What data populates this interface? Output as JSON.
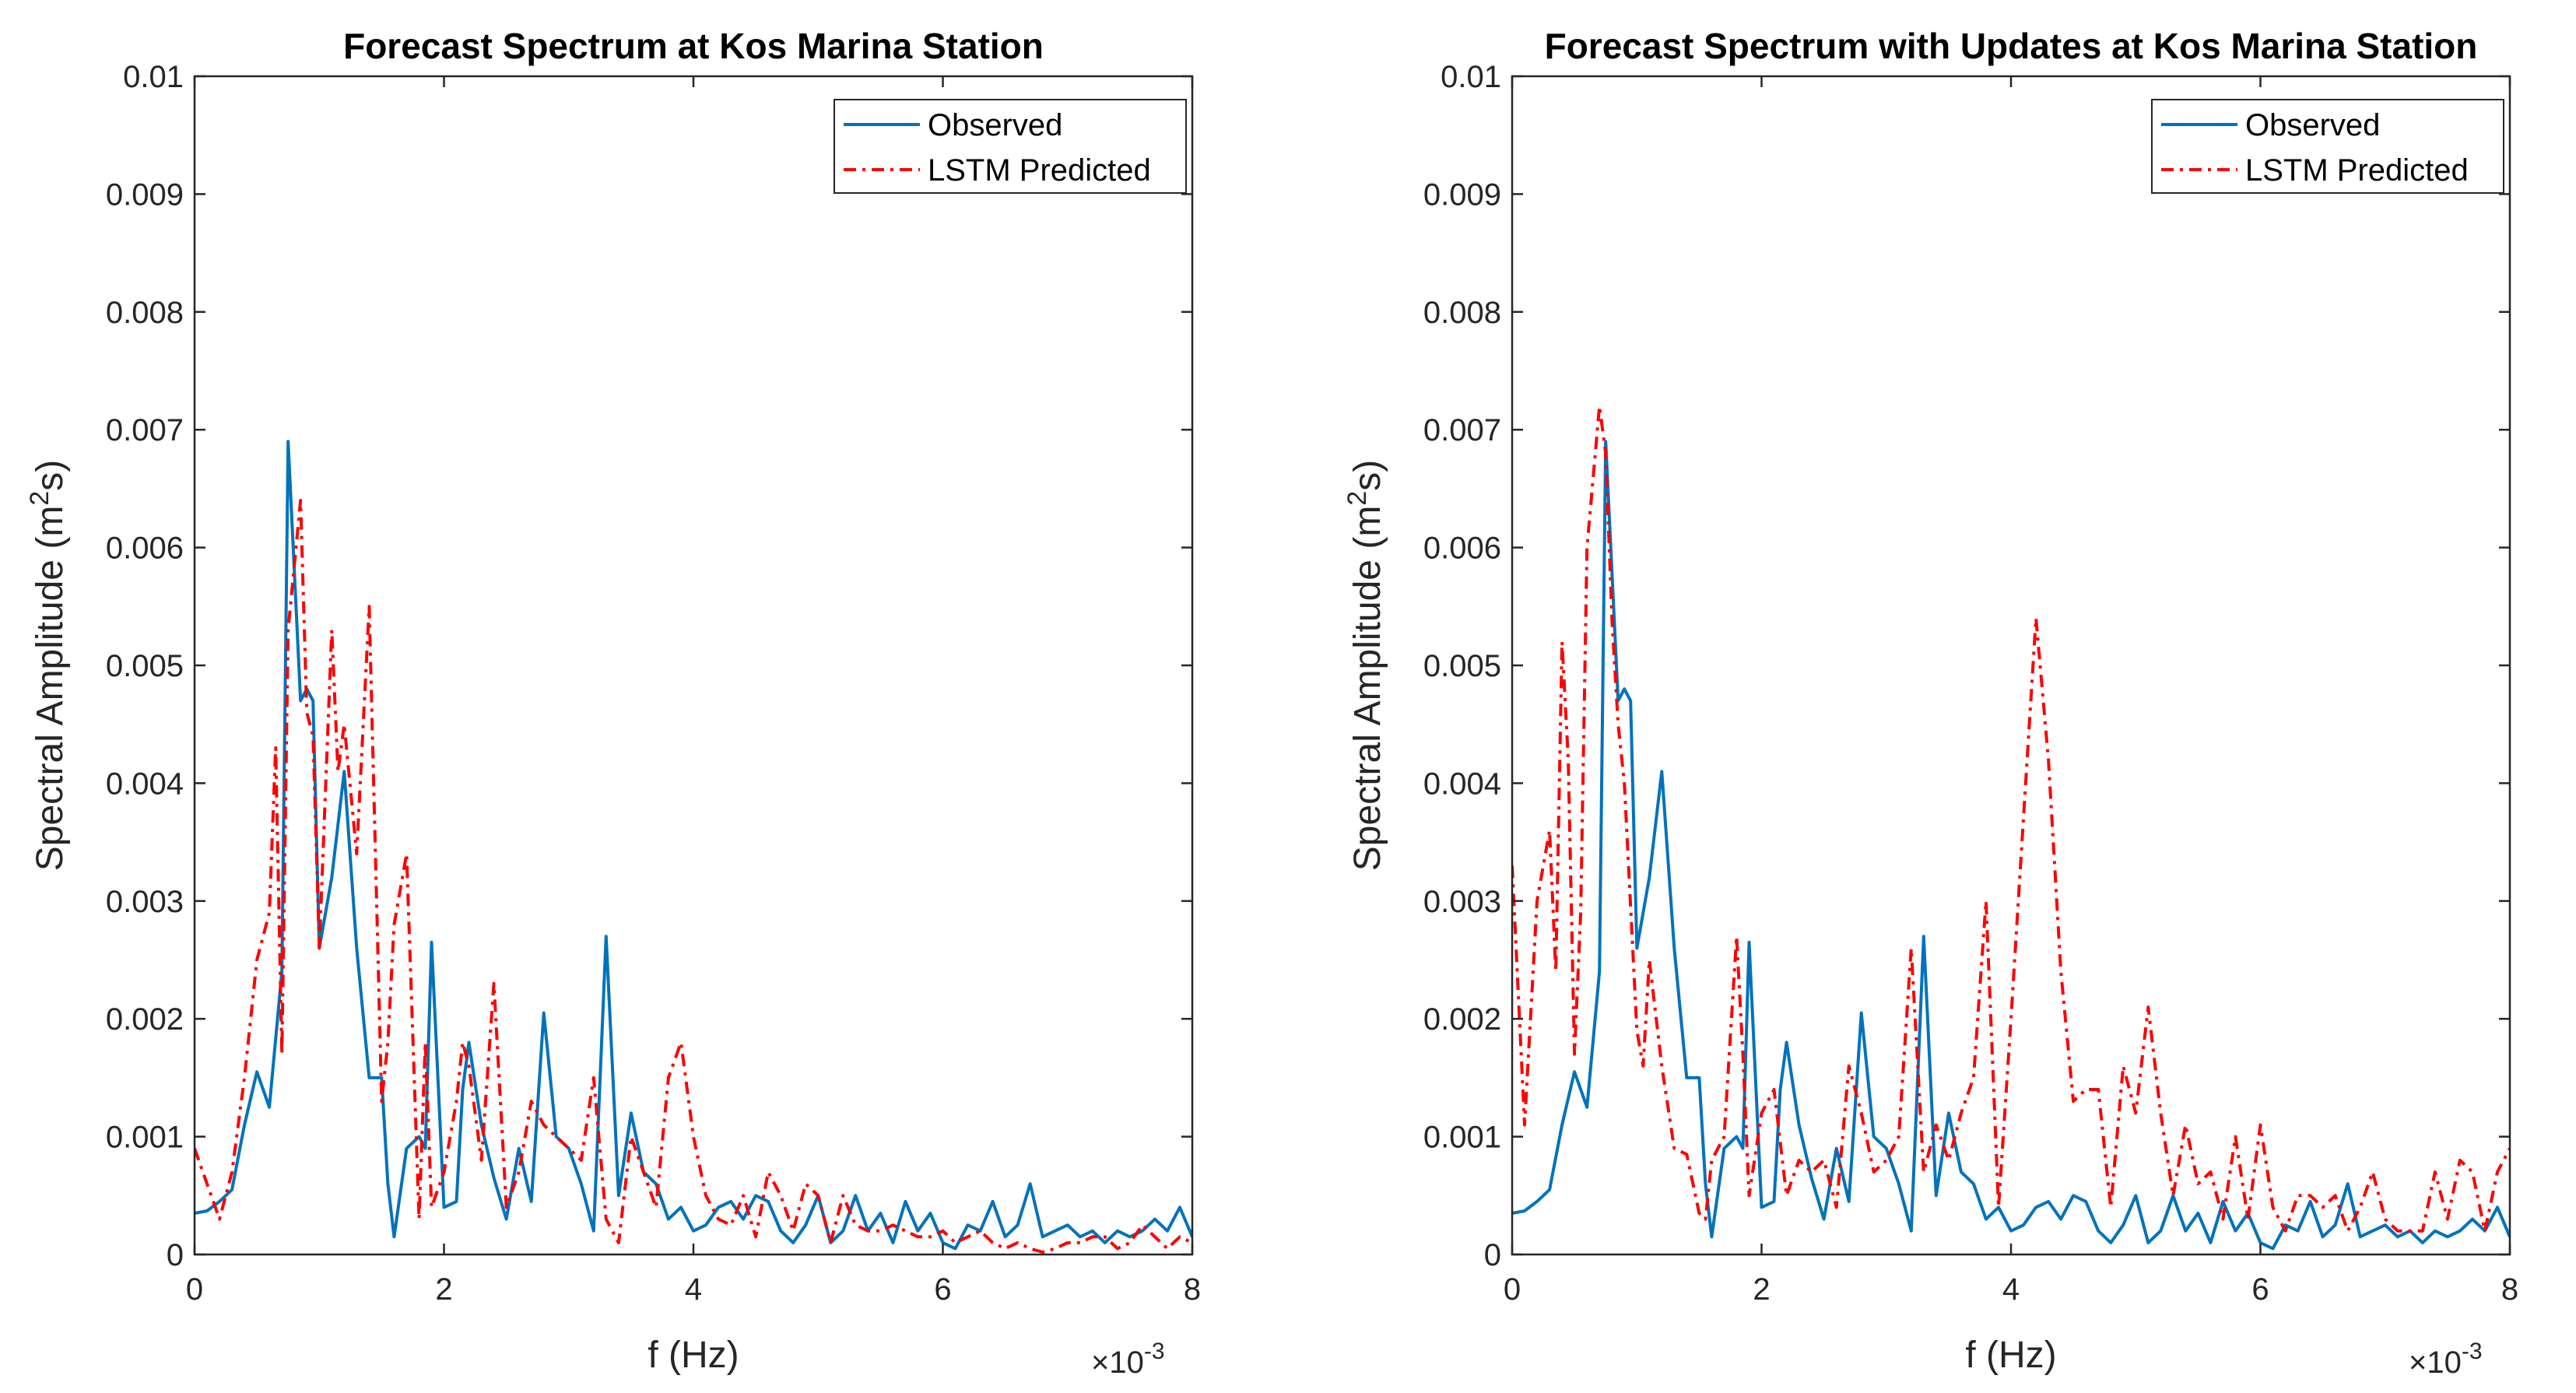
{
  "chart_data": [
    {
      "type": "line",
      "title": "Forecast Spectrum at Kos Marina Station",
      "xlabel": "f (Hz)",
      "ylabel_main": "Spectral Amplitude (m",
      "ylabel_sup": "2",
      "ylabel_tail": "s)",
      "x_multiplier": "×10",
      "x_multiplier_exp": "-3",
      "xlim": [
        0,
        8
      ],
      "ylim": [
        0,
        0.01
      ],
      "xticks": [
        0,
        2,
        4,
        6,
        8
      ],
      "xtick_labels": [
        "0",
        "2",
        "4",
        "6",
        "8"
      ],
      "yticks": [
        0,
        0.001,
        0.002,
        0.003,
        0.004,
        0.005,
        0.006,
        0.007,
        0.008,
        0.009,
        0.01
      ],
      "ytick_labels": [
        "0",
        "0.001",
        "0.002",
        "0.003",
        "0.004",
        "0.005",
        "0.006",
        "0.007",
        "0.008",
        "0.009",
        "0.01"
      ],
      "legend": {
        "position": "top-right",
        "entries": [
          "Observed",
          "LSTM Predicted"
        ]
      },
      "series": [
        {
          "name": "Observed",
          "color": "#0072BD",
          "style": "solid",
          "x": [
            0,
            0.1,
            0.2,
            0.3,
            0.4,
            0.5,
            0.6,
            0.7,
            0.75,
            0.85,
            0.9,
            0.95,
            1.0,
            1.1,
            1.2,
            1.3,
            1.4,
            1.5,
            1.55,
            1.6,
            1.7,
            1.8,
            1.85,
            1.9,
            2.0,
            2.1,
            2.15,
            2.2,
            2.3,
            2.4,
            2.5,
            2.6,
            2.7,
            2.8,
            2.9,
            3.0,
            3.1,
            3.2,
            3.3,
            3.4,
            3.5,
            3.6,
            3.7,
            3.8,
            3.9,
            4.0,
            4.1,
            4.2,
            4.3,
            4.4,
            4.5,
            4.6,
            4.7,
            4.8,
            4.9,
            5.0,
            5.1,
            5.2,
            5.3,
            5.4,
            5.5,
            5.6,
            5.7,
            5.8,
            5.9,
            6.0,
            6.1,
            6.2,
            6.3,
            6.4,
            6.5,
            6.6,
            6.7,
            6.8,
            6.9,
            7.0,
            7.1,
            7.2,
            7.3,
            7.4,
            7.5,
            7.6,
            7.7,
            7.8,
            7.9,
            8.0
          ],
          "y": [
            0.00035,
            0.00037,
            0.00045,
            0.00055,
            0.0011,
            0.00155,
            0.00125,
            0.0024,
            0.0069,
            0.0047,
            0.0048,
            0.0047,
            0.0026,
            0.0032,
            0.0041,
            0.0026,
            0.0015,
            0.0015,
            0.0006,
            0.00015,
            0.0009,
            0.001,
            0.0009,
            0.00265,
            0.0004,
            0.00045,
            0.0014,
            0.0018,
            0.0011,
            0.00065,
            0.0003,
            0.0009,
            0.00045,
            0.00205,
            0.001,
            0.0009,
            0.0006,
            0.0002,
            0.0027,
            0.0005,
            0.0012,
            0.0007,
            0.0006,
            0.0003,
            0.0004,
            0.0002,
            0.00025,
            0.0004,
            0.00045,
            0.0003,
            0.0005,
            0.00045,
            0.0002,
            0.0001,
            0.00025,
            0.0005,
            0.0001,
            0.0002,
            0.0005,
            0.0002,
            0.00035,
            0.0001,
            0.00045,
            0.0002,
            0.00035,
            0.0001,
            5e-05,
            0.00025,
            0.0002,
            0.00045,
            0.00015,
            0.00025,
            0.0006,
            0.00015,
            0.0002,
            0.00025,
            0.00015,
            0.0002,
            0.0001,
            0.0002,
            0.00015,
            0.0002,
            0.0003,
            0.0002,
            0.0004,
            0.00015
          ]
        },
        {
          "name": "LSTM Predicted",
          "color": "#FF0000",
          "style": "dashdot",
          "x": [
            0,
            0.1,
            0.2,
            0.3,
            0.4,
            0.5,
            0.6,
            0.65,
            0.7,
            0.75,
            0.85,
            0.9,
            0.95,
            1.0,
            1.1,
            1.15,
            1.2,
            1.3,
            1.4,
            1.5,
            1.55,
            1.6,
            1.7,
            1.8,
            1.85,
            1.9,
            2.0,
            2.1,
            2.15,
            2.2,
            2.3,
            2.4,
            2.5,
            2.6,
            2.7,
            2.8,
            2.9,
            3.0,
            3.1,
            3.2,
            3.3,
            3.4,
            3.5,
            3.6,
            3.7,
            3.8,
            3.9,
            4.0,
            4.1,
            4.2,
            4.3,
            4.4,
            4.5,
            4.6,
            4.7,
            4.8,
            4.9,
            5.0,
            5.1,
            5.2,
            5.3,
            5.4,
            5.5,
            5.6,
            5.7,
            5.8,
            5.9,
            6.0,
            6.1,
            6.2,
            6.3,
            6.4,
            6.5,
            6.6,
            6.7,
            6.8,
            6.9,
            7.0,
            7.1,
            7.2,
            7.3,
            7.4,
            7.5,
            7.6,
            7.7,
            7.8,
            7.9,
            8.0
          ],
          "y": [
            0.0009,
            0.0006,
            0.0003,
            0.0007,
            0.0015,
            0.0025,
            0.0029,
            0.0043,
            0.0017,
            0.0053,
            0.0064,
            0.0046,
            0.0044,
            0.0026,
            0.0053,
            0.0041,
            0.0045,
            0.0034,
            0.0055,
            0.0013,
            0.0018,
            0.0028,
            0.0034,
            0.0003,
            0.0018,
            0.0004,
            0.0007,
            0.0013,
            0.0018,
            0.0016,
            0.0008,
            0.0023,
            0.0004,
            0.0007,
            0.0013,
            0.0011,
            0.001,
            0.0009,
            0.0008,
            0.0015,
            0.0003,
            0.0001,
            0.001,
            0.0007,
            0.0004,
            0.0015,
            0.0018,
            0.001,
            0.0005,
            0.0003,
            0.00025,
            0.0005,
            0.00015,
            0.0007,
            0.0005,
            0.0002,
            0.0006,
            0.0005,
            0.0001,
            0.0005,
            0.00025,
            0.0002,
            0.0002,
            0.00025,
            0.0002,
            0.00015,
            0.00015,
            0.0002,
            0.0001,
            0.00015,
            0.0002,
            0.0001,
            5e-05,
            0.0001,
            5e-05,
            2e-05,
            5e-05,
            0.0001,
            0.0001,
            0.00015,
            0.00015,
            5e-05,
            0.0001,
            0.00025,
            0.00015,
            5e-05,
            0.00015,
            0.0001
          ]
        }
      ]
    },
    {
      "type": "line",
      "title": "Forecast Spectrum with Updates at Kos Marina Station",
      "xlabel": "f (Hz)",
      "ylabel_main": "Spectral Amplitude (m",
      "ylabel_sup": "2",
      "ylabel_tail": "s)",
      "x_multiplier": "×10",
      "x_multiplier_exp": "-3",
      "xlim": [
        0,
        8
      ],
      "ylim": [
        0,
        0.01
      ],
      "xticks": [
        0,
        2,
        4,
        6,
        8
      ],
      "xtick_labels": [
        "0",
        "2",
        "4",
        "6",
        "8"
      ],
      "yticks": [
        0,
        0.001,
        0.002,
        0.003,
        0.004,
        0.005,
        0.006,
        0.007,
        0.008,
        0.009,
        0.01
      ],
      "ytick_labels": [
        "0",
        "0.001",
        "0.002",
        "0.003",
        "0.004",
        "0.005",
        "0.006",
        "0.007",
        "0.008",
        "0.009",
        "0.01"
      ],
      "legend": {
        "position": "top-right",
        "entries": [
          "Observed",
          "LSTM Predicted"
        ]
      },
      "series": [
        {
          "name": "Observed",
          "color": "#0072BD",
          "style": "solid",
          "x": [
            0,
            0.1,
            0.2,
            0.3,
            0.4,
            0.5,
            0.6,
            0.7,
            0.75,
            0.85,
            0.9,
            0.95,
            1.0,
            1.1,
            1.2,
            1.3,
            1.4,
            1.5,
            1.55,
            1.6,
            1.7,
            1.8,
            1.85,
            1.9,
            2.0,
            2.1,
            2.15,
            2.2,
            2.3,
            2.4,
            2.5,
            2.6,
            2.7,
            2.8,
            2.9,
            3.0,
            3.1,
            3.2,
            3.3,
            3.4,
            3.5,
            3.6,
            3.7,
            3.8,
            3.9,
            4.0,
            4.1,
            4.2,
            4.3,
            4.4,
            4.5,
            4.6,
            4.7,
            4.8,
            4.9,
            5.0,
            5.1,
            5.2,
            5.3,
            5.4,
            5.5,
            5.6,
            5.7,
            5.8,
            5.9,
            6.0,
            6.1,
            6.2,
            6.3,
            6.4,
            6.5,
            6.6,
            6.7,
            6.8,
            6.9,
            7.0,
            7.1,
            7.2,
            7.3,
            7.4,
            7.5,
            7.6,
            7.7,
            7.8,
            7.9,
            8.0
          ],
          "y": [
            0.00035,
            0.00037,
            0.00045,
            0.00055,
            0.0011,
            0.00155,
            0.00125,
            0.0024,
            0.0069,
            0.0047,
            0.0048,
            0.0047,
            0.0026,
            0.0032,
            0.0041,
            0.0026,
            0.0015,
            0.0015,
            0.0006,
            0.00015,
            0.0009,
            0.001,
            0.0009,
            0.00265,
            0.0004,
            0.00045,
            0.0014,
            0.0018,
            0.0011,
            0.00065,
            0.0003,
            0.0009,
            0.00045,
            0.00205,
            0.001,
            0.0009,
            0.0006,
            0.0002,
            0.0027,
            0.0005,
            0.0012,
            0.0007,
            0.0006,
            0.0003,
            0.0004,
            0.0002,
            0.00025,
            0.0004,
            0.00045,
            0.0003,
            0.0005,
            0.00045,
            0.0002,
            0.0001,
            0.00025,
            0.0005,
            0.0001,
            0.0002,
            0.0005,
            0.0002,
            0.00035,
            0.0001,
            0.00045,
            0.0002,
            0.00035,
            0.0001,
            5e-05,
            0.00025,
            0.0002,
            0.00045,
            0.00015,
            0.00025,
            0.0006,
            0.00015,
            0.0002,
            0.00025,
            0.00015,
            0.0002,
            0.0001,
            0.0002,
            0.00015,
            0.0002,
            0.0003,
            0.0002,
            0.0004,
            0.00015
          ]
        },
        {
          "name": "LSTM Predicted",
          "color": "#FF0000",
          "style": "dashdot",
          "x": [
            0,
            0.1,
            0.2,
            0.3,
            0.35,
            0.4,
            0.45,
            0.5,
            0.55,
            0.6,
            0.7,
            0.75,
            0.8,
            0.85,
            0.9,
            1.0,
            1.05,
            1.1,
            1.2,
            1.3,
            1.4,
            1.5,
            1.55,
            1.6,
            1.7,
            1.8,
            1.85,
            1.9,
            2.0,
            2.1,
            2.2,
            2.3,
            2.4,
            2.5,
            2.6,
            2.7,
            2.8,
            2.9,
            3.0,
            3.1,
            3.2,
            3.3,
            3.4,
            3.5,
            3.6,
            3.7,
            3.8,
            3.9,
            4.0,
            4.1,
            4.2,
            4.3,
            4.4,
            4.5,
            4.6,
            4.7,
            4.8,
            4.9,
            5.0,
            5.1,
            5.2,
            5.3,
            5.4,
            5.5,
            5.6,
            5.7,
            5.8,
            5.9,
            6.0,
            6.1,
            6.2,
            6.3,
            6.4,
            6.5,
            6.6,
            6.7,
            6.8,
            6.9,
            7.0,
            7.1,
            7.2,
            7.3,
            7.4,
            7.5,
            7.6,
            7.7,
            7.8,
            7.9,
            8.0
          ],
          "y": [
            0.0033,
            0.0011,
            0.003,
            0.0036,
            0.0024,
            0.0052,
            0.0042,
            0.0017,
            0.0029,
            0.006,
            0.0072,
            0.0068,
            0.0054,
            0.0045,
            0.004,
            0.0019,
            0.0016,
            0.0025,
            0.0016,
            0.0009,
            0.00085,
            0.00035,
            0.0003,
            0.0008,
            0.001,
            0.0027,
            0.0017,
            0.0005,
            0.0012,
            0.0014,
            0.0005,
            0.0008,
            0.0007,
            0.0008,
            0.0004,
            0.0016,
            0.0012,
            0.0007,
            0.0008,
            0.001,
            0.0026,
            0.0007,
            0.0011,
            0.0008,
            0.0012,
            0.0015,
            0.003,
            0.0004,
            0.002,
            0.0037,
            0.0054,
            0.0042,
            0.0024,
            0.0013,
            0.0014,
            0.0014,
            0.0004,
            0.0016,
            0.0012,
            0.0021,
            0.0012,
            0.0005,
            0.0011,
            0.0006,
            0.0007,
            0.0003,
            0.001,
            0.0003,
            0.0011,
            0.0004,
            0.0002,
            0.0005,
            0.0005,
            0.0004,
            0.0005,
            0.0002,
            0.0004,
            0.0007,
            0.0003,
            0.0002,
            0.0002,
            0.0002,
            0.0007,
            0.0003,
            0.0008,
            0.0007,
            0.0002,
            0.0007,
            0.0009
          ]
        }
      ]
    }
  ]
}
